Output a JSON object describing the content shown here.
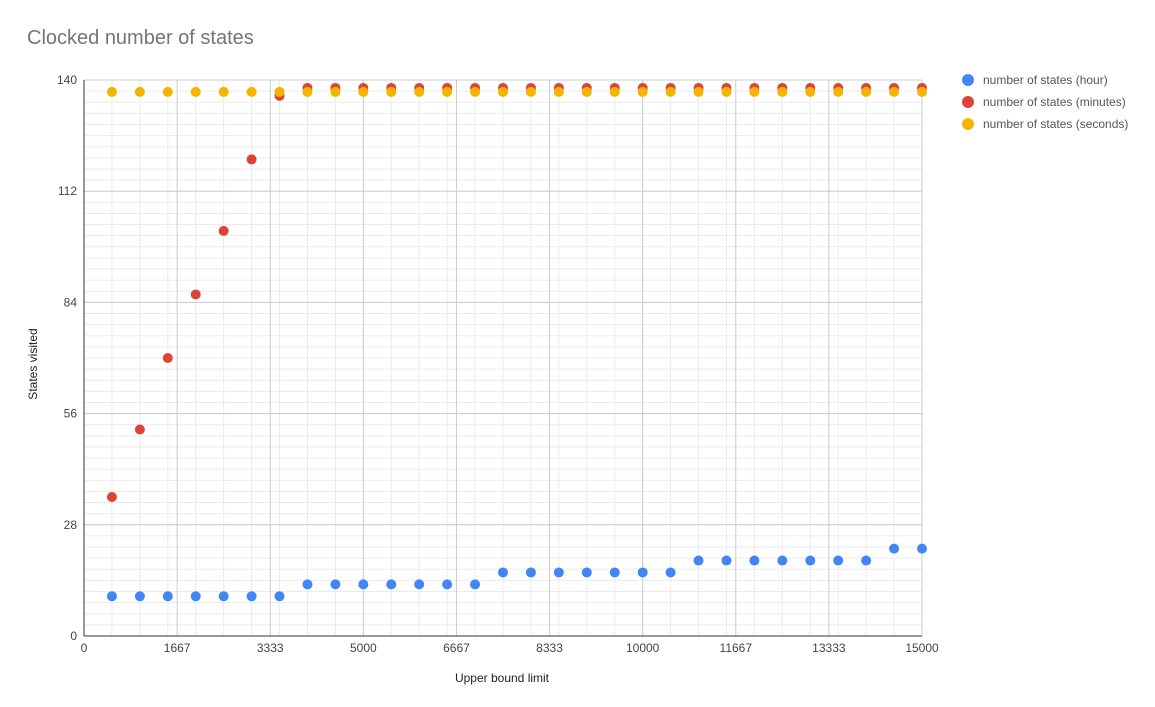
{
  "chart_data": {
    "type": "scatter",
    "title": "Clocked number of states",
    "xlabel": "Upper bound limit",
    "ylabel": "States visited",
    "xlim": [
      0,
      15000
    ],
    "ylim": [
      0,
      140
    ],
    "x_ticks": [
      0,
      1667,
      3333,
      5000,
      6667,
      8333,
      10000,
      11667,
      13333,
      15000
    ],
    "y_ticks": [
      0,
      28,
      56,
      84,
      112,
      140
    ],
    "grid": true,
    "legend_position": "right",
    "x": [
      500,
      1000,
      1500,
      2000,
      2500,
      3000,
      3500,
      4000,
      4500,
      5000,
      5500,
      6000,
      6500,
      7000,
      7500,
      8000,
      8500,
      9000,
      9500,
      10000,
      10500,
      11000,
      11500,
      12000,
      12500,
      13000,
      13500,
      14000,
      14500,
      15000
    ],
    "series": [
      {
        "name": "number of states (hour)",
        "color": "#4285F4",
        "values": [
          10,
          10,
          10,
          10,
          10,
          10,
          10,
          13,
          13,
          13,
          13,
          13,
          13,
          13,
          16,
          16,
          16,
          16,
          16,
          16,
          16,
          19,
          19,
          19,
          19,
          19,
          19,
          19,
          22,
          22
        ]
      },
      {
        "name": "number of states (minutes)",
        "color": "#DB4437",
        "values": [
          35,
          52,
          70,
          86,
          102,
          120,
          136,
          138,
          138,
          138,
          138,
          138,
          138,
          138,
          138,
          138,
          138,
          138,
          138,
          138,
          138,
          138,
          138,
          138,
          138,
          138,
          138,
          138,
          138,
          138
        ]
      },
      {
        "name": "number of states (seconds)",
        "color": "#F4B400",
        "values": [
          137,
          137,
          137,
          137,
          137,
          137,
          137,
          137,
          137,
          137,
          137,
          137,
          137,
          137,
          137,
          137,
          137,
          137,
          137,
          137,
          137,
          137,
          137,
          137,
          137,
          137,
          137,
          137,
          137,
          137
        ]
      }
    ]
  }
}
